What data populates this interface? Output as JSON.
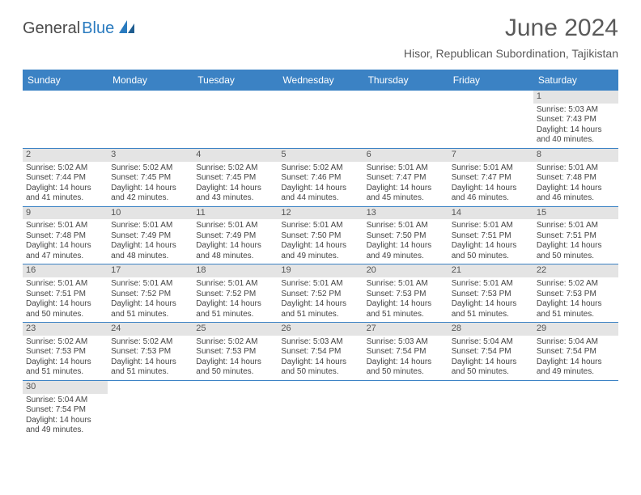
{
  "brand": {
    "general": "General",
    "blue": "Blue"
  },
  "title": "June 2024",
  "location": "Hisor, Republican Subordination, Tajikistan",
  "dayHeaders": [
    "Sunday",
    "Monday",
    "Tuesday",
    "Wednesday",
    "Thursday",
    "Friday",
    "Saturday"
  ],
  "colors": {
    "headerBar": "#3b82c4",
    "dayNumBar": "#e4e4e4",
    "text": "#444444",
    "titleText": "#5a5a5a"
  },
  "weeks": [
    [
      null,
      null,
      null,
      null,
      null,
      null,
      {
        "n": "1",
        "sr": "5:03 AM",
        "ss": "7:43 PM",
        "dl": "14 hours and 40 minutes."
      }
    ],
    [
      {
        "n": "2",
        "sr": "5:02 AM",
        "ss": "7:44 PM",
        "dl": "14 hours and 41 minutes."
      },
      {
        "n": "3",
        "sr": "5:02 AM",
        "ss": "7:45 PM",
        "dl": "14 hours and 42 minutes."
      },
      {
        "n": "4",
        "sr": "5:02 AM",
        "ss": "7:45 PM",
        "dl": "14 hours and 43 minutes."
      },
      {
        "n": "5",
        "sr": "5:02 AM",
        "ss": "7:46 PM",
        "dl": "14 hours and 44 minutes."
      },
      {
        "n": "6",
        "sr": "5:01 AM",
        "ss": "7:47 PM",
        "dl": "14 hours and 45 minutes."
      },
      {
        "n": "7",
        "sr": "5:01 AM",
        "ss": "7:47 PM",
        "dl": "14 hours and 46 minutes."
      },
      {
        "n": "8",
        "sr": "5:01 AM",
        "ss": "7:48 PM",
        "dl": "14 hours and 46 minutes."
      }
    ],
    [
      {
        "n": "9",
        "sr": "5:01 AM",
        "ss": "7:48 PM",
        "dl": "14 hours and 47 minutes."
      },
      {
        "n": "10",
        "sr": "5:01 AM",
        "ss": "7:49 PM",
        "dl": "14 hours and 48 minutes."
      },
      {
        "n": "11",
        "sr": "5:01 AM",
        "ss": "7:49 PM",
        "dl": "14 hours and 48 minutes."
      },
      {
        "n": "12",
        "sr": "5:01 AM",
        "ss": "7:50 PM",
        "dl": "14 hours and 49 minutes."
      },
      {
        "n": "13",
        "sr": "5:01 AM",
        "ss": "7:50 PM",
        "dl": "14 hours and 49 minutes."
      },
      {
        "n": "14",
        "sr": "5:01 AM",
        "ss": "7:51 PM",
        "dl": "14 hours and 50 minutes."
      },
      {
        "n": "15",
        "sr": "5:01 AM",
        "ss": "7:51 PM",
        "dl": "14 hours and 50 minutes."
      }
    ],
    [
      {
        "n": "16",
        "sr": "5:01 AM",
        "ss": "7:51 PM",
        "dl": "14 hours and 50 minutes."
      },
      {
        "n": "17",
        "sr": "5:01 AM",
        "ss": "7:52 PM",
        "dl": "14 hours and 51 minutes."
      },
      {
        "n": "18",
        "sr": "5:01 AM",
        "ss": "7:52 PM",
        "dl": "14 hours and 51 minutes."
      },
      {
        "n": "19",
        "sr": "5:01 AM",
        "ss": "7:52 PM",
        "dl": "14 hours and 51 minutes."
      },
      {
        "n": "20",
        "sr": "5:01 AM",
        "ss": "7:53 PM",
        "dl": "14 hours and 51 minutes."
      },
      {
        "n": "21",
        "sr": "5:01 AM",
        "ss": "7:53 PM",
        "dl": "14 hours and 51 minutes."
      },
      {
        "n": "22",
        "sr": "5:02 AM",
        "ss": "7:53 PM",
        "dl": "14 hours and 51 minutes."
      }
    ],
    [
      {
        "n": "23",
        "sr": "5:02 AM",
        "ss": "7:53 PM",
        "dl": "14 hours and 51 minutes."
      },
      {
        "n": "24",
        "sr": "5:02 AM",
        "ss": "7:53 PM",
        "dl": "14 hours and 51 minutes."
      },
      {
        "n": "25",
        "sr": "5:02 AM",
        "ss": "7:53 PM",
        "dl": "14 hours and 50 minutes."
      },
      {
        "n": "26",
        "sr": "5:03 AM",
        "ss": "7:54 PM",
        "dl": "14 hours and 50 minutes."
      },
      {
        "n": "27",
        "sr": "5:03 AM",
        "ss": "7:54 PM",
        "dl": "14 hours and 50 minutes."
      },
      {
        "n": "28",
        "sr": "5:04 AM",
        "ss": "7:54 PM",
        "dl": "14 hours and 50 minutes."
      },
      {
        "n": "29",
        "sr": "5:04 AM",
        "ss": "7:54 PM",
        "dl": "14 hours and 49 minutes."
      }
    ],
    [
      {
        "n": "30",
        "sr": "5:04 AM",
        "ss": "7:54 PM",
        "dl": "14 hours and 49 minutes."
      },
      null,
      null,
      null,
      null,
      null,
      null
    ]
  ],
  "labels": {
    "sunrise": "Sunrise: ",
    "sunset": "Sunset: ",
    "daylight": "Daylight: "
  }
}
